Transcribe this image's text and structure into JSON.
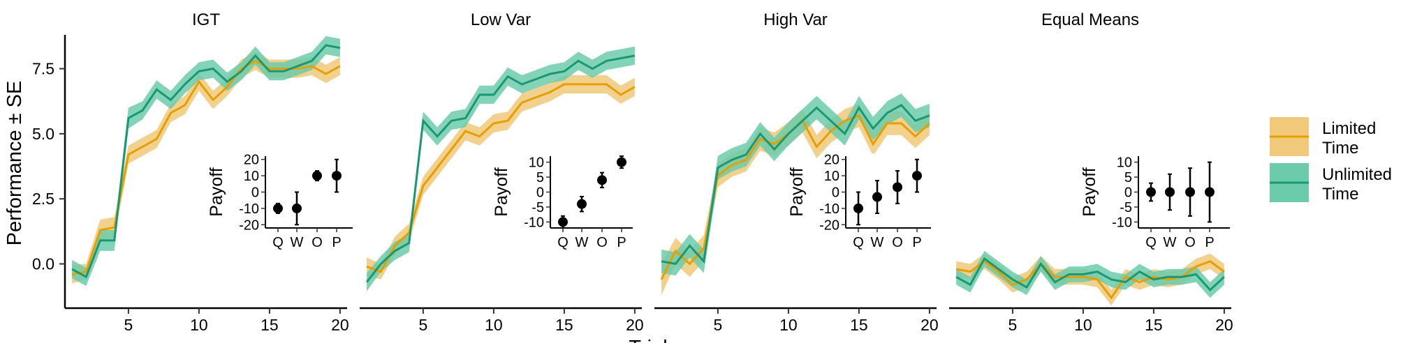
{
  "chart_data": {
    "type": "line",
    "ylabel": "Performance ± SE",
    "xlabel": "Trial",
    "xlim": [
      0.5,
      20.5
    ],
    "ylim": [
      -1.7,
      8.8
    ],
    "xticks": [
      5,
      10,
      15,
      20
    ],
    "yticks": [
      0.0,
      2.5,
      5.0,
      7.5
    ],
    "ytick_labels": [
      "0.0",
      "2.5",
      "5.0",
      "7.5"
    ],
    "legend_position": "right",
    "series_styles": [
      {
        "name": "Limited Time",
        "line_color": "#E69F00",
        "band_color": "#F0C97A"
      },
      {
        "name": "Unlimited Time",
        "line_color": "#1A9873",
        "band_color": "#6CCBAA"
      }
    ],
    "panels": [
      {
        "title": "IGT",
        "x": [
          1,
          2,
          3,
          4,
          5,
          6,
          7,
          8,
          9,
          10,
          11,
          12,
          13,
          14,
          15,
          16,
          17,
          18,
          19,
          20
        ],
        "series": [
          {
            "name": "Limited Time",
            "values": [
              -0.4,
              -0.3,
              1.3,
              1.4,
              4.2,
              4.5,
              4.8,
              5.8,
              6.1,
              7.0,
              6.3,
              6.8,
              7.5,
              7.8,
              7.5,
              7.5,
              7.5,
              7.6,
              7.3,
              7.6
            ],
            "se": [
              0.35,
              0.3,
              0.4,
              0.4,
              0.35,
              0.35,
              0.35,
              0.35,
              0.35,
              0.35,
              0.35,
              0.35,
              0.35,
              0.35,
              0.35,
              0.35,
              0.35,
              0.35,
              0.35,
              0.35
            ]
          },
          {
            "name": "Unlimited Time",
            "values": [
              -0.2,
              -0.5,
              0.9,
              0.9,
              5.6,
              5.9,
              6.7,
              6.3,
              6.9,
              7.4,
              7.5,
              7.0,
              7.4,
              8.0,
              7.4,
              7.4,
              7.6,
              7.8,
              8.4,
              8.3
            ],
            "se": [
              0.35,
              0.35,
              0.4,
              0.4,
              0.4,
              0.35,
              0.35,
              0.35,
              0.35,
              0.35,
              0.35,
              0.35,
              0.35,
              0.35,
              0.35,
              0.35,
              0.35,
              0.35,
              0.35,
              0.35
            ]
          }
        ],
        "inset": {
          "ylabel": "Payoff",
          "categories": [
            "Q",
            "W",
            "O",
            "P"
          ],
          "yticks": [
            20,
            10,
            0,
            -10,
            -20
          ],
          "ylim": [
            -22,
            22
          ],
          "points": [
            {
              "category": "Q",
              "value": -10,
              "low": -13,
              "high": -7
            },
            {
              "category": "W",
              "value": -10,
              "low": -20,
              "high": 0
            },
            {
              "category": "O",
              "value": 10,
              "low": 7,
              "high": 13
            },
            {
              "category": "P",
              "value": 10,
              "low": 0,
              "high": 20
            }
          ]
        }
      },
      {
        "title": "Low Var",
        "x": [
          1,
          2,
          3,
          4,
          5,
          6,
          7,
          8,
          9,
          10,
          11,
          12,
          13,
          14,
          15,
          16,
          17,
          18,
          19,
          20
        ],
        "series": [
          {
            "name": "Limited Time",
            "values": [
              -0.1,
              -0.3,
              0.7,
              1.2,
              3.0,
              3.7,
              4.4,
              5.1,
              4.9,
              5.4,
              5.5,
              6.2,
              6.4,
              6.6,
              6.9,
              6.9,
              6.9,
              6.9,
              6.5,
              6.8
            ],
            "se": [
              0.35,
              0.3,
              0.35,
              0.35,
              0.35,
              0.35,
              0.35,
              0.35,
              0.35,
              0.35,
              0.35,
              0.35,
              0.35,
              0.35,
              0.35,
              0.35,
              0.35,
              0.35,
              0.35,
              0.35
            ]
          },
          {
            "name": "Unlimited Time",
            "values": [
              -0.7,
              0.0,
              0.5,
              0.8,
              5.5,
              4.9,
              5.5,
              5.6,
              6.5,
              6.5,
              7.2,
              6.9,
              7.1,
              7.3,
              7.4,
              7.8,
              7.5,
              7.8,
              7.9,
              8.0
            ],
            "se": [
              0.35,
              0.3,
              0.35,
              0.35,
              0.35,
              0.35,
              0.35,
              0.35,
              0.35,
              0.35,
              0.35,
              0.35,
              0.35,
              0.35,
              0.35,
              0.35,
              0.35,
              0.35,
              0.35,
              0.35
            ]
          }
        ],
        "inset": {
          "ylabel": "Payoff",
          "categories": [
            "Q",
            "W",
            "O",
            "P"
          ],
          "yticks": [
            10,
            5,
            0,
            -5,
            -10
          ],
          "ylim": [
            -12,
            12
          ],
          "points": [
            {
              "category": "Q",
              "value": -10,
              "low": -12,
              "high": -8
            },
            {
              "category": "W",
              "value": -4,
              "low": -6.5,
              "high": -1.5
            },
            {
              "category": "O",
              "value": 4,
              "low": 1.5,
              "high": 6.5
            },
            {
              "category": "P",
              "value": 10,
              "low": 8,
              "high": 12
            }
          ]
        }
      },
      {
        "title": "High Var",
        "x": [
          1,
          2,
          3,
          4,
          5,
          6,
          7,
          8,
          9,
          10,
          11,
          12,
          13,
          14,
          15,
          16,
          17,
          18,
          19,
          20
        ],
        "series": [
          {
            "name": "Limited Time",
            "values": [
              -0.6,
              0.5,
              0.0,
              0.6,
              3.4,
              3.8,
              4.0,
              4.8,
              4.6,
              5.0,
              5.5,
              4.5,
              5.1,
              5.5,
              5.7,
              4.6,
              5.4,
              5.4,
              4.9,
              5.4
            ],
            "se": [
              0.6,
              0.5,
              0.5,
              0.5,
              0.45,
              0.45,
              0.45,
              0.45,
              0.45,
              0.45,
              0.45,
              0.45,
              0.45,
              0.45,
              0.45,
              0.45,
              0.45,
              0.45,
              0.45,
              0.45
            ]
          },
          {
            "name": "Unlimited Time",
            "values": [
              0.1,
              0.0,
              0.7,
              0.1,
              3.7,
              4.0,
              4.2,
              5.0,
              4.4,
              5.0,
              5.5,
              6.0,
              5.5,
              5.0,
              6.0,
              5.2,
              5.8,
              6.1,
              5.5,
              5.7
            ],
            "se": [
              0.45,
              0.45,
              0.45,
              0.45,
              0.45,
              0.45,
              0.45,
              0.45,
              0.45,
              0.45,
              0.45,
              0.45,
              0.45,
              0.45,
              0.45,
              0.45,
              0.45,
              0.45,
              0.45,
              0.45
            ]
          }
        ],
        "inset": {
          "ylabel": "Payoff",
          "categories": [
            "Q",
            "W",
            "O",
            "P"
          ],
          "yticks": [
            20,
            10,
            0,
            -10,
            -20
          ],
          "ylim": [
            -22,
            22
          ],
          "points": [
            {
              "category": "Q",
              "value": -10,
              "low": -20,
              "high": 0
            },
            {
              "category": "W",
              "value": -3,
              "low": -13,
              "high": 7
            },
            {
              "category": "O",
              "value": 3,
              "low": -7,
              "high": 13
            },
            {
              "category": "P",
              "value": 10,
              "low": 0,
              "high": 20
            }
          ]
        }
      },
      {
        "title": "Equal Means",
        "x": [
          1,
          2,
          3,
          4,
          5,
          6,
          7,
          8,
          9,
          10,
          11,
          12,
          13,
          14,
          15,
          16,
          17,
          18,
          19,
          20
        ],
        "series": [
          {
            "name": "Limited Time",
            "values": [
              -0.2,
              -0.3,
              0.1,
              -0.3,
              -0.8,
              -0.6,
              0.0,
              -0.5,
              -0.5,
              -0.5,
              -0.6,
              -1.3,
              -0.5,
              -0.7,
              -0.5,
              -0.6,
              -0.5,
              -0.1,
              0.1,
              -0.3
            ],
            "se": [
              0.3,
              0.3,
              0.3,
              0.3,
              0.3,
              0.3,
              0.3,
              0.3,
              0.3,
              0.3,
              0.3,
              0.3,
              0.3,
              0.3,
              0.3,
              0.3,
              0.3,
              0.3,
              0.3,
              0.3
            ]
          },
          {
            "name": "Unlimited Time",
            "values": [
              -0.5,
              -0.8,
              0.2,
              -0.2,
              -0.6,
              -0.9,
              0.0,
              -0.7,
              -0.4,
              -0.4,
              -0.3,
              -0.6,
              -0.7,
              -0.3,
              -0.6,
              -0.5,
              -0.5,
              -0.4,
              -1.0,
              -0.5
            ],
            "se": [
              0.3,
              0.3,
              0.3,
              0.3,
              0.3,
              0.3,
              0.3,
              0.3,
              0.3,
              0.3,
              0.3,
              0.3,
              0.3,
              0.3,
              0.3,
              0.3,
              0.3,
              0.3,
              0.3,
              0.3
            ]
          }
        ],
        "inset": {
          "ylabel": "Payoff",
          "categories": [
            "Q",
            "W",
            "O",
            "P"
          ],
          "yticks": [
            10,
            5,
            0,
            -5,
            -10
          ],
          "ylim": [
            -12,
            12
          ],
          "points": [
            {
              "category": "Q",
              "value": 0,
              "low": -3,
              "high": 3
            },
            {
              "category": "W",
              "value": 0,
              "low": -6,
              "high": 6
            },
            {
              "category": "O",
              "value": 0,
              "low": -8,
              "high": 8
            },
            {
              "category": "P",
              "value": 0,
              "low": -10,
              "high": 10
            }
          ]
        }
      }
    ],
    "legend": {
      "items": [
        {
          "line1": "Limited",
          "line2": "Time"
        },
        {
          "line1": "Unlimited",
          "line2": "Time"
        }
      ]
    }
  }
}
